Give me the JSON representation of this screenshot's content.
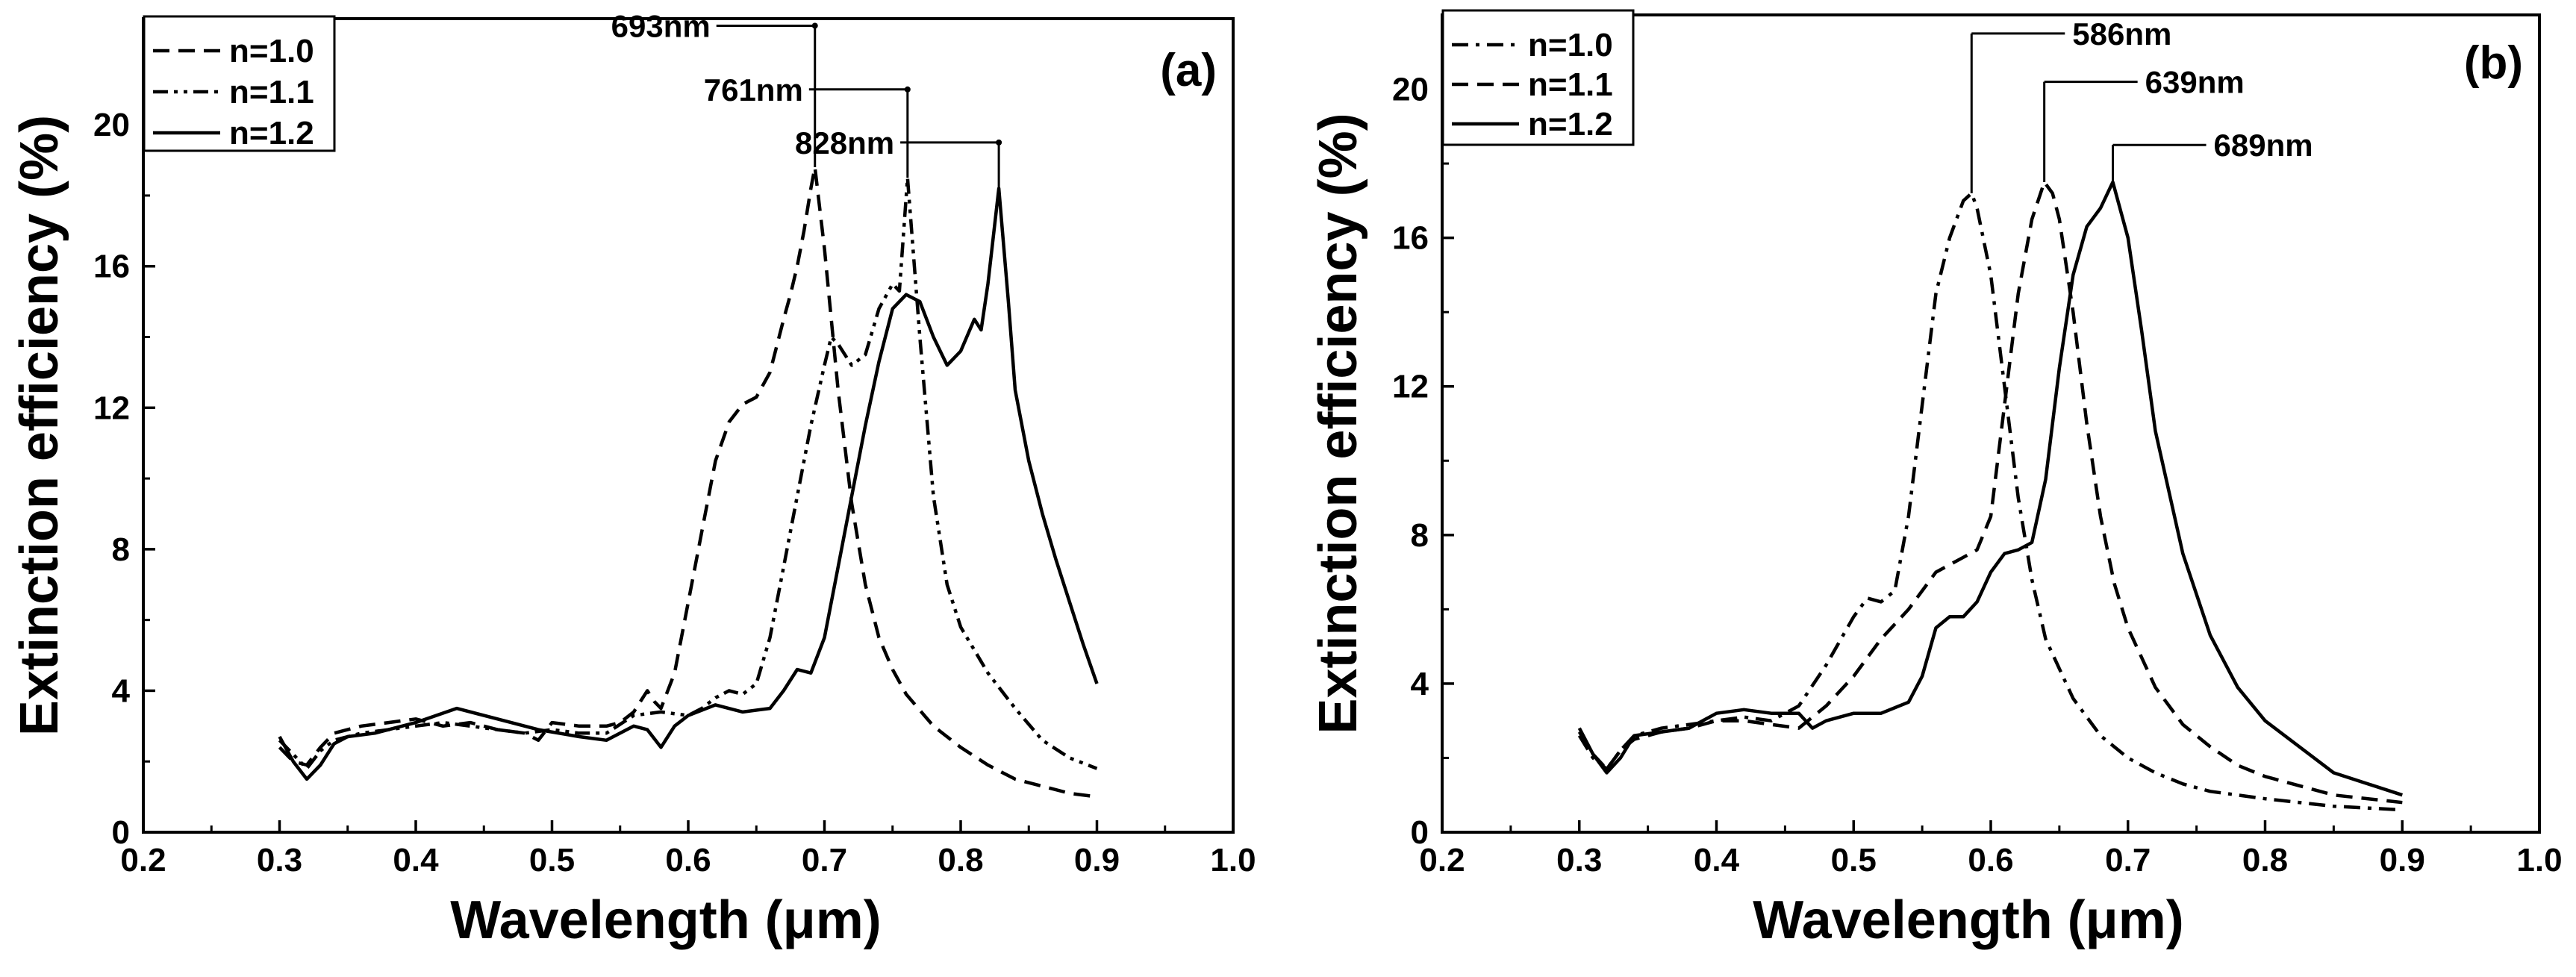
{
  "chart_data": [
    {
      "type": "line",
      "panel_label": "(a)",
      "title": "",
      "xlabel": "Wavelength (μm)",
      "ylabel": "Extinction efficiency (%)",
      "xlim": [
        0.2,
        1.0
      ],
      "ylim": [
        0,
        23
      ],
      "x_ticks": [
        0.2,
        0.3,
        0.4,
        0.5,
        0.6,
        0.7,
        0.8,
        0.9,
        1.0
      ],
      "x_tick_labels": [
        "0.2",
        "0.3",
        "0.4",
        "0.5",
        "0.6",
        "0.7",
        "0.8",
        "0.9",
        "1.0"
      ],
      "y_ticks": [
        0,
        4,
        8,
        12,
        16,
        20
      ],
      "y_tick_labels": [
        "0",
        "4",
        "8",
        "12",
        "16",
        "20"
      ],
      "grid": false,
      "legend_position": "top-left",
      "series": [
        {
          "name": "n=1.0",
          "dash": "dashed",
          "x": [
            0.3,
            0.31,
            0.32,
            0.33,
            0.34,
            0.36,
            0.38,
            0.4,
            0.42,
            0.44,
            0.46,
            0.48,
            0.49,
            0.5,
            0.52,
            0.54,
            0.55,
            0.56,
            0.57,
            0.575,
            0.58,
            0.59,
            0.6,
            0.61,
            0.62,
            0.63,
            0.64,
            0.65,
            0.66,
            0.67,
            0.675,
            0.68,
            0.685,
            0.69,
            0.693,
            0.7,
            0.71,
            0.72,
            0.73,
            0.74,
            0.75,
            0.76,
            0.78,
            0.8,
            0.82,
            0.84,
            0.86,
            0.88,
            0.9
          ],
          "values": [
            2.4,
            2.0,
            1.9,
            2.4,
            2.8,
            3.0,
            3.1,
            3.2,
            3.0,
            3.1,
            2.9,
            2.8,
            2.6,
            3.1,
            3.0,
            3.0,
            3.1,
            3.4,
            4.0,
            3.7,
            3.5,
            4.5,
            6.5,
            8.5,
            10.5,
            11.6,
            12.1,
            12.3,
            13.0,
            14.5,
            15.2,
            16.0,
            17.0,
            18.2,
            18.8,
            16.5,
            12.5,
            9.3,
            7.0,
            5.5,
            4.6,
            3.9,
            3.0,
            2.4,
            1.9,
            1.5,
            1.3,
            1.1,
            1.0
          ]
        },
        {
          "name": "n=1.1",
          "dash": "dash-dot-dot",
          "x": [
            0.3,
            0.31,
            0.32,
            0.33,
            0.34,
            0.36,
            0.38,
            0.4,
            0.42,
            0.44,
            0.46,
            0.48,
            0.5,
            0.52,
            0.54,
            0.56,
            0.58,
            0.6,
            0.61,
            0.62,
            0.63,
            0.64,
            0.65,
            0.66,
            0.67,
            0.68,
            0.69,
            0.7,
            0.705,
            0.71,
            0.72,
            0.73,
            0.74,
            0.75,
            0.755,
            0.761,
            0.77,
            0.78,
            0.79,
            0.8,
            0.82,
            0.84,
            0.86,
            0.88,
            0.9
          ],
          "values": [
            2.6,
            2.2,
            1.8,
            2.3,
            2.6,
            2.8,
            2.9,
            3.0,
            3.1,
            3.0,
            2.9,
            2.8,
            2.9,
            2.8,
            2.8,
            3.3,
            3.4,
            3.3,
            3.5,
            3.8,
            4.0,
            3.9,
            4.2,
            5.5,
            7.5,
            9.5,
            11.5,
            13.2,
            14.0,
            13.8,
            13.2,
            13.5,
            14.8,
            15.5,
            15.3,
            18.5,
            14.0,
            9.5,
            7.0,
            5.8,
            4.5,
            3.5,
            2.6,
            2.1,
            1.8
          ]
        },
        {
          "name": "n=1.2",
          "dash": "solid",
          "x": [
            0.3,
            0.31,
            0.32,
            0.33,
            0.34,
            0.35,
            0.37,
            0.4,
            0.43,
            0.46,
            0.49,
            0.52,
            0.54,
            0.56,
            0.57,
            0.58,
            0.59,
            0.6,
            0.62,
            0.64,
            0.66,
            0.67,
            0.68,
            0.69,
            0.7,
            0.71,
            0.72,
            0.73,
            0.74,
            0.75,
            0.76,
            0.77,
            0.78,
            0.79,
            0.8,
            0.81,
            0.815,
            0.82,
            0.828,
            0.835,
            0.84,
            0.85,
            0.86,
            0.87,
            0.88,
            0.89,
            0.9
          ],
          "values": [
            2.7,
            2.0,
            1.5,
            1.9,
            2.5,
            2.7,
            2.8,
            3.1,
            3.5,
            3.2,
            2.9,
            2.7,
            2.6,
            3.0,
            2.9,
            2.4,
            3.0,
            3.3,
            3.6,
            3.4,
            3.5,
            4.0,
            4.6,
            4.5,
            5.5,
            7.5,
            9.5,
            11.5,
            13.3,
            14.8,
            15.2,
            15.0,
            14.0,
            13.2,
            13.6,
            14.5,
            14.2,
            15.5,
            18.2,
            15.0,
            12.5,
            10.5,
            9.0,
            7.7,
            6.5,
            5.3,
            4.2
          ]
        }
      ],
      "annotations": [
        {
          "text": "693nm",
          "x": 0.693,
          "peak_y": 18.8,
          "label_y": 22.8
        },
        {
          "text": "761nm",
          "x": 0.761,
          "peak_y": 18.5,
          "label_y": 21.0
        },
        {
          "text": "828nm",
          "x": 0.828,
          "peak_y": 18.2,
          "label_y": 19.5
        }
      ]
    },
    {
      "type": "line",
      "panel_label": "(b)",
      "title": "",
      "xlabel": "Wavelength (μm)",
      "ylabel": "Extinction efficiency (%)",
      "xlim": [
        0.2,
        1.0
      ],
      "ylim": [
        0,
        22
      ],
      "x_ticks": [
        0.2,
        0.3,
        0.4,
        0.5,
        0.6,
        0.7,
        0.8,
        0.9,
        1.0
      ],
      "x_tick_labels": [
        "0.2",
        "0.3",
        "0.4",
        "0.5",
        "0.6",
        "0.7",
        "0.8",
        "0.9",
        "1.0"
      ],
      "y_ticks": [
        0,
        4,
        8,
        12,
        16,
        20
      ],
      "y_tick_labels": [
        "0",
        "4",
        "8",
        "12",
        "16",
        "20"
      ],
      "grid": false,
      "legend_position": "top-left",
      "series": [
        {
          "name": "n=1.0",
          "dash": "dash-dot",
          "x": [
            0.3,
            0.31,
            0.32,
            0.33,
            0.34,
            0.36,
            0.38,
            0.4,
            0.42,
            0.44,
            0.46,
            0.48,
            0.5,
            0.51,
            0.52,
            0.53,
            0.54,
            0.55,
            0.56,
            0.57,
            0.58,
            0.586,
            0.59,
            0.6,
            0.61,
            0.62,
            0.63,
            0.64,
            0.66,
            0.68,
            0.7,
            0.72,
            0.74,
            0.76,
            0.8,
            0.85,
            0.9
          ],
          "values": [
            2.6,
            2.0,
            1.7,
            2.2,
            2.6,
            2.8,
            2.9,
            3.0,
            3.1,
            3.0,
            3.4,
            4.5,
            5.8,
            6.3,
            6.2,
            6.5,
            8.5,
            11.5,
            14.5,
            16.0,
            17.0,
            17.2,
            16.8,
            15.0,
            12.0,
            9.0,
            6.8,
            5.2,
            3.6,
            2.6,
            2.0,
            1.6,
            1.3,
            1.1,
            0.9,
            0.7,
            0.6
          ]
        },
        {
          "name": "n=1.1",
          "dash": "dashed",
          "x": [
            0.3,
            0.31,
            0.32,
            0.33,
            0.34,
            0.36,
            0.38,
            0.4,
            0.42,
            0.44,
            0.46,
            0.48,
            0.5,
            0.52,
            0.54,
            0.56,
            0.57,
            0.58,
            0.59,
            0.6,
            0.61,
            0.62,
            0.63,
            0.639,
            0.645,
            0.65,
            0.66,
            0.67,
            0.68,
            0.69,
            0.7,
            0.72,
            0.74,
            0.76,
            0.78,
            0.8,
            0.85,
            0.9
          ],
          "values": [
            2.7,
            2.1,
            1.7,
            2.2,
            2.5,
            2.7,
            2.8,
            3.0,
            3.0,
            2.9,
            2.8,
            3.4,
            4.2,
            5.2,
            6.0,
            7.0,
            7.2,
            7.4,
            7.6,
            8.5,
            11.5,
            14.5,
            16.5,
            17.5,
            17.2,
            16.5,
            14.0,
            11.0,
            8.5,
            6.7,
            5.5,
            3.9,
            2.9,
            2.3,
            1.8,
            1.5,
            1.0,
            0.8
          ]
        },
        {
          "name": "n=1.2",
          "dash": "solid",
          "x": [
            0.3,
            0.31,
            0.32,
            0.33,
            0.34,
            0.36,
            0.38,
            0.4,
            0.42,
            0.44,
            0.46,
            0.47,
            0.48,
            0.5,
            0.52,
            0.54,
            0.55,
            0.56,
            0.57,
            0.58,
            0.59,
            0.6,
            0.61,
            0.62,
            0.63,
            0.64,
            0.65,
            0.66,
            0.67,
            0.68,
            0.689,
            0.7,
            0.71,
            0.72,
            0.74,
            0.76,
            0.78,
            0.8,
            0.85,
            0.9
          ],
          "values": [
            2.8,
            2.1,
            1.6,
            2.0,
            2.6,
            2.7,
            2.8,
            3.2,
            3.3,
            3.2,
            3.2,
            2.8,
            3.0,
            3.2,
            3.2,
            3.5,
            4.2,
            5.5,
            5.8,
            5.8,
            6.2,
            7.0,
            7.5,
            7.6,
            7.8,
            9.5,
            12.5,
            15.0,
            16.3,
            16.8,
            17.5,
            16.0,
            13.5,
            10.8,
            7.5,
            5.3,
            3.9,
            3.0,
            1.6,
            1.0
          ]
        }
      ],
      "annotations": [
        {
          "text": "586nm",
          "x": 0.586,
          "peak_y": 17.2,
          "label_y": 21.5
        },
        {
          "text": "639nm",
          "x": 0.639,
          "peak_y": 17.5,
          "label_y": 20.2
        },
        {
          "text": "689nm",
          "x": 0.689,
          "peak_y": 17.5,
          "label_y": 18.5
        }
      ]
    }
  ]
}
